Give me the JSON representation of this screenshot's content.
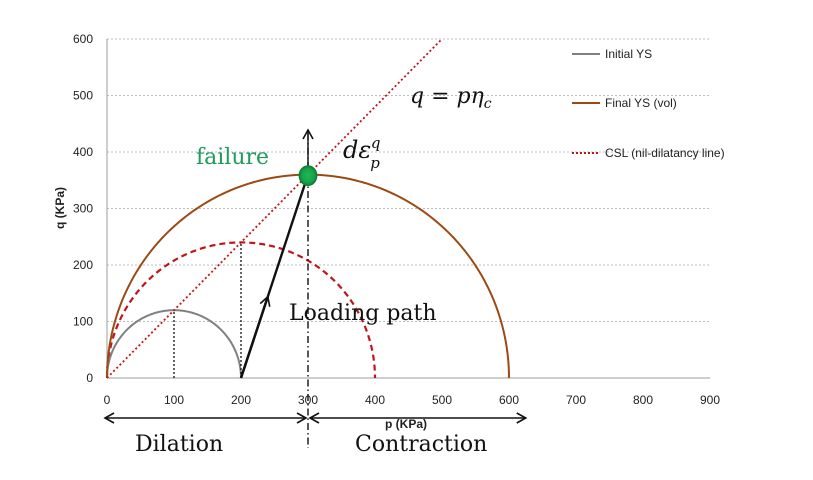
{
  "chart_data": {
    "type": "line",
    "xlabel": "p (KPa)",
    "ylabel": "q (KPa)",
    "xlim": [
      0,
      900
    ],
    "ylim": [
      0,
      600
    ],
    "x_ticks": [
      "0",
      "100",
      "200",
      "300",
      "400",
      "500",
      "600",
      "700",
      "800",
      "900"
    ],
    "y_ticks": [
      "0",
      "100",
      "200",
      "300",
      "400",
      "500",
      "600"
    ],
    "grid": "horizontal dotted",
    "legend_position": "right",
    "series": [
      {
        "name": "Initial YS",
        "color": "#808080",
        "style": "solid",
        "shape": "semicircle",
        "center_p": 100,
        "radius": 100,
        "q_scale": 1.2
      },
      {
        "name": "Final YS (vol)",
        "color": "#9c4a14",
        "style": "solid",
        "shape": "semicircle",
        "center_p": 300,
        "radius": 300,
        "q_scale": 1.2
      },
      {
        "name": "CSL (nil-dilatancy line)",
        "color": "#c0141a",
        "style": "dotted",
        "shape": "line",
        "points": [
          [
            0,
            0
          ],
          [
            500,
            600
          ]
        ]
      }
    ],
    "unlabeled_series": [
      {
        "color": "#c0141a",
        "style": "dashed",
        "shape": "semicircle",
        "center_p": 200,
        "radius": 200,
        "q_scale": 1.2
      }
    ],
    "loading_path": {
      "from": [
        200,
        0
      ],
      "to": [
        300,
        360
      ],
      "color": "#111111"
    },
    "failure_point": {
      "p": 300,
      "q": 360,
      "color": "#1db954"
    },
    "vertical_markers": [
      {
        "p": 100,
        "q_top": 120
      },
      {
        "p": 200,
        "q_top": 240
      }
    ],
    "divider_p": 300,
    "annotations": {
      "failure": "failure",
      "loading_path": "Loading path",
      "dilation": "Dilation",
      "contraction": "Contraction",
      "csl_equation": "q = pη_c",
      "strain_increment": "dε_p^q"
    }
  },
  "colors": {
    "grid": "#bdbdbd",
    "axis": "#9e9e9e",
    "failure_text": "#1d9c5a"
  }
}
